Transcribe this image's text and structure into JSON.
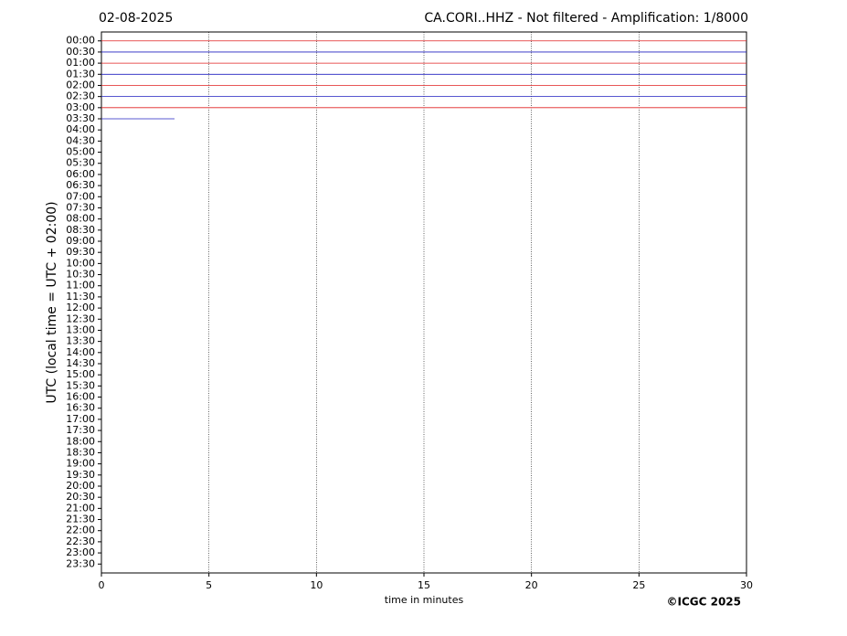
{
  "chart_data": {
    "type": "helicorder",
    "date": "02-08-2025",
    "title": "CA.CORI..HHZ - Not filtered - Amplification: 1/8000",
    "y_label": "UTC (local time = UTC + 02:00)",
    "x_label": "time in minutes",
    "copyright": "©ICGC 2025",
    "categories": [
      "00:00",
      "00:30",
      "01:00",
      "01:30",
      "02:00",
      "02:30",
      "03:00",
      "03:30",
      "04:00",
      "04:30",
      "05:00",
      "05:30",
      "06:00",
      "06:30",
      "07:00",
      "07:30",
      "08:00",
      "08:30",
      "09:00",
      "09:30",
      "10:00",
      "10:30",
      "11:00",
      "11:30",
      "12:00",
      "12:30",
      "13:00",
      "13:30",
      "14:00",
      "14:30",
      "15:00",
      "15:30",
      "16:00",
      "16:30",
      "17:00",
      "17:30",
      "18:00",
      "18:30",
      "19:00",
      "19:30",
      "20:00",
      "20:30",
      "21:00",
      "21:30",
      "22:00",
      "22:30",
      "23:00",
      "23:30"
    ],
    "traces": [
      {
        "color": "#e02020",
        "end": 30
      },
      {
        "color": "#2020c0",
        "end": 30
      },
      {
        "color": "#e02020",
        "end": 30
      },
      {
        "color": "#2020c0",
        "end": 30
      },
      {
        "color": "#e02020",
        "end": 30
      },
      {
        "color": "#2020c0",
        "end": 30
      },
      {
        "color": "#e02020",
        "end": 30
      },
      {
        "color": "#2020c0",
        "end": 3.4
      }
    ],
    "xlim": [
      0,
      30
    ],
    "xticks": [
      0,
      5,
      10,
      15,
      20,
      25,
      30
    ],
    "grid": true
  }
}
